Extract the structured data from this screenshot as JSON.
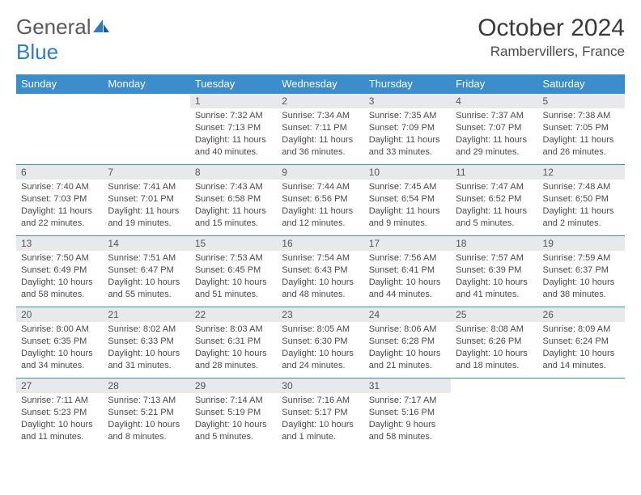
{
  "logo": {
    "word1": "General",
    "word2": "Blue"
  },
  "title": "October 2024",
  "location": "Rambervillers, France",
  "header_bg": "#3c8dcc",
  "header_fg": "#ffffff",
  "daynum_bg": "#e7e9eb",
  "border_color": "#3c8dcc",
  "text_color": "#4a4a4a",
  "font_family": "Arial, Helvetica, sans-serif",
  "day_names": [
    "Sunday",
    "Monday",
    "Tuesday",
    "Wednesday",
    "Thursday",
    "Friday",
    "Saturday"
  ],
  "weeks": [
    [
      {
        "n": "",
        "sunrise": "",
        "sunset": "",
        "daylight": ""
      },
      {
        "n": "",
        "sunrise": "",
        "sunset": "",
        "daylight": ""
      },
      {
        "n": "1",
        "sunrise": "Sunrise: 7:32 AM",
        "sunset": "Sunset: 7:13 PM",
        "daylight": "Daylight: 11 hours and 40 minutes."
      },
      {
        "n": "2",
        "sunrise": "Sunrise: 7:34 AM",
        "sunset": "Sunset: 7:11 PM",
        "daylight": "Daylight: 11 hours and 36 minutes."
      },
      {
        "n": "3",
        "sunrise": "Sunrise: 7:35 AM",
        "sunset": "Sunset: 7:09 PM",
        "daylight": "Daylight: 11 hours and 33 minutes."
      },
      {
        "n": "4",
        "sunrise": "Sunrise: 7:37 AM",
        "sunset": "Sunset: 7:07 PM",
        "daylight": "Daylight: 11 hours and 29 minutes."
      },
      {
        "n": "5",
        "sunrise": "Sunrise: 7:38 AM",
        "sunset": "Sunset: 7:05 PM",
        "daylight": "Daylight: 11 hours and 26 minutes."
      }
    ],
    [
      {
        "n": "6",
        "sunrise": "Sunrise: 7:40 AM",
        "sunset": "Sunset: 7:03 PM",
        "daylight": "Daylight: 11 hours and 22 minutes."
      },
      {
        "n": "7",
        "sunrise": "Sunrise: 7:41 AM",
        "sunset": "Sunset: 7:01 PM",
        "daylight": "Daylight: 11 hours and 19 minutes."
      },
      {
        "n": "8",
        "sunrise": "Sunrise: 7:43 AM",
        "sunset": "Sunset: 6:58 PM",
        "daylight": "Daylight: 11 hours and 15 minutes."
      },
      {
        "n": "9",
        "sunrise": "Sunrise: 7:44 AM",
        "sunset": "Sunset: 6:56 PM",
        "daylight": "Daylight: 11 hours and 12 minutes."
      },
      {
        "n": "10",
        "sunrise": "Sunrise: 7:45 AM",
        "sunset": "Sunset: 6:54 PM",
        "daylight": "Daylight: 11 hours and 9 minutes."
      },
      {
        "n": "11",
        "sunrise": "Sunrise: 7:47 AM",
        "sunset": "Sunset: 6:52 PM",
        "daylight": "Daylight: 11 hours and 5 minutes."
      },
      {
        "n": "12",
        "sunrise": "Sunrise: 7:48 AM",
        "sunset": "Sunset: 6:50 PM",
        "daylight": "Daylight: 11 hours and 2 minutes."
      }
    ],
    [
      {
        "n": "13",
        "sunrise": "Sunrise: 7:50 AM",
        "sunset": "Sunset: 6:49 PM",
        "daylight": "Daylight: 10 hours and 58 minutes."
      },
      {
        "n": "14",
        "sunrise": "Sunrise: 7:51 AM",
        "sunset": "Sunset: 6:47 PM",
        "daylight": "Daylight: 10 hours and 55 minutes."
      },
      {
        "n": "15",
        "sunrise": "Sunrise: 7:53 AM",
        "sunset": "Sunset: 6:45 PM",
        "daylight": "Daylight: 10 hours and 51 minutes."
      },
      {
        "n": "16",
        "sunrise": "Sunrise: 7:54 AM",
        "sunset": "Sunset: 6:43 PM",
        "daylight": "Daylight: 10 hours and 48 minutes."
      },
      {
        "n": "17",
        "sunrise": "Sunrise: 7:56 AM",
        "sunset": "Sunset: 6:41 PM",
        "daylight": "Daylight: 10 hours and 44 minutes."
      },
      {
        "n": "18",
        "sunrise": "Sunrise: 7:57 AM",
        "sunset": "Sunset: 6:39 PM",
        "daylight": "Daylight: 10 hours and 41 minutes."
      },
      {
        "n": "19",
        "sunrise": "Sunrise: 7:59 AM",
        "sunset": "Sunset: 6:37 PM",
        "daylight": "Daylight: 10 hours and 38 minutes."
      }
    ],
    [
      {
        "n": "20",
        "sunrise": "Sunrise: 8:00 AM",
        "sunset": "Sunset: 6:35 PM",
        "daylight": "Daylight: 10 hours and 34 minutes."
      },
      {
        "n": "21",
        "sunrise": "Sunrise: 8:02 AM",
        "sunset": "Sunset: 6:33 PM",
        "daylight": "Daylight: 10 hours and 31 minutes."
      },
      {
        "n": "22",
        "sunrise": "Sunrise: 8:03 AM",
        "sunset": "Sunset: 6:31 PM",
        "daylight": "Daylight: 10 hours and 28 minutes."
      },
      {
        "n": "23",
        "sunrise": "Sunrise: 8:05 AM",
        "sunset": "Sunset: 6:30 PM",
        "daylight": "Daylight: 10 hours and 24 minutes."
      },
      {
        "n": "24",
        "sunrise": "Sunrise: 8:06 AM",
        "sunset": "Sunset: 6:28 PM",
        "daylight": "Daylight: 10 hours and 21 minutes."
      },
      {
        "n": "25",
        "sunrise": "Sunrise: 8:08 AM",
        "sunset": "Sunset: 6:26 PM",
        "daylight": "Daylight: 10 hours and 18 minutes."
      },
      {
        "n": "26",
        "sunrise": "Sunrise: 8:09 AM",
        "sunset": "Sunset: 6:24 PM",
        "daylight": "Daylight: 10 hours and 14 minutes."
      }
    ],
    [
      {
        "n": "27",
        "sunrise": "Sunrise: 7:11 AM",
        "sunset": "Sunset: 5:23 PM",
        "daylight": "Daylight: 10 hours and 11 minutes."
      },
      {
        "n": "28",
        "sunrise": "Sunrise: 7:13 AM",
        "sunset": "Sunset: 5:21 PM",
        "daylight": "Daylight: 10 hours and 8 minutes."
      },
      {
        "n": "29",
        "sunrise": "Sunrise: 7:14 AM",
        "sunset": "Sunset: 5:19 PM",
        "daylight": "Daylight: 10 hours and 5 minutes."
      },
      {
        "n": "30",
        "sunrise": "Sunrise: 7:16 AM",
        "sunset": "Sunset: 5:17 PM",
        "daylight": "Daylight: 10 hours and 1 minute."
      },
      {
        "n": "31",
        "sunrise": "Sunrise: 7:17 AM",
        "sunset": "Sunset: 5:16 PM",
        "daylight": "Daylight: 9 hours and 58 minutes."
      },
      {
        "n": "",
        "sunrise": "",
        "sunset": "",
        "daylight": ""
      },
      {
        "n": "",
        "sunrise": "",
        "sunset": "",
        "daylight": ""
      }
    ]
  ]
}
